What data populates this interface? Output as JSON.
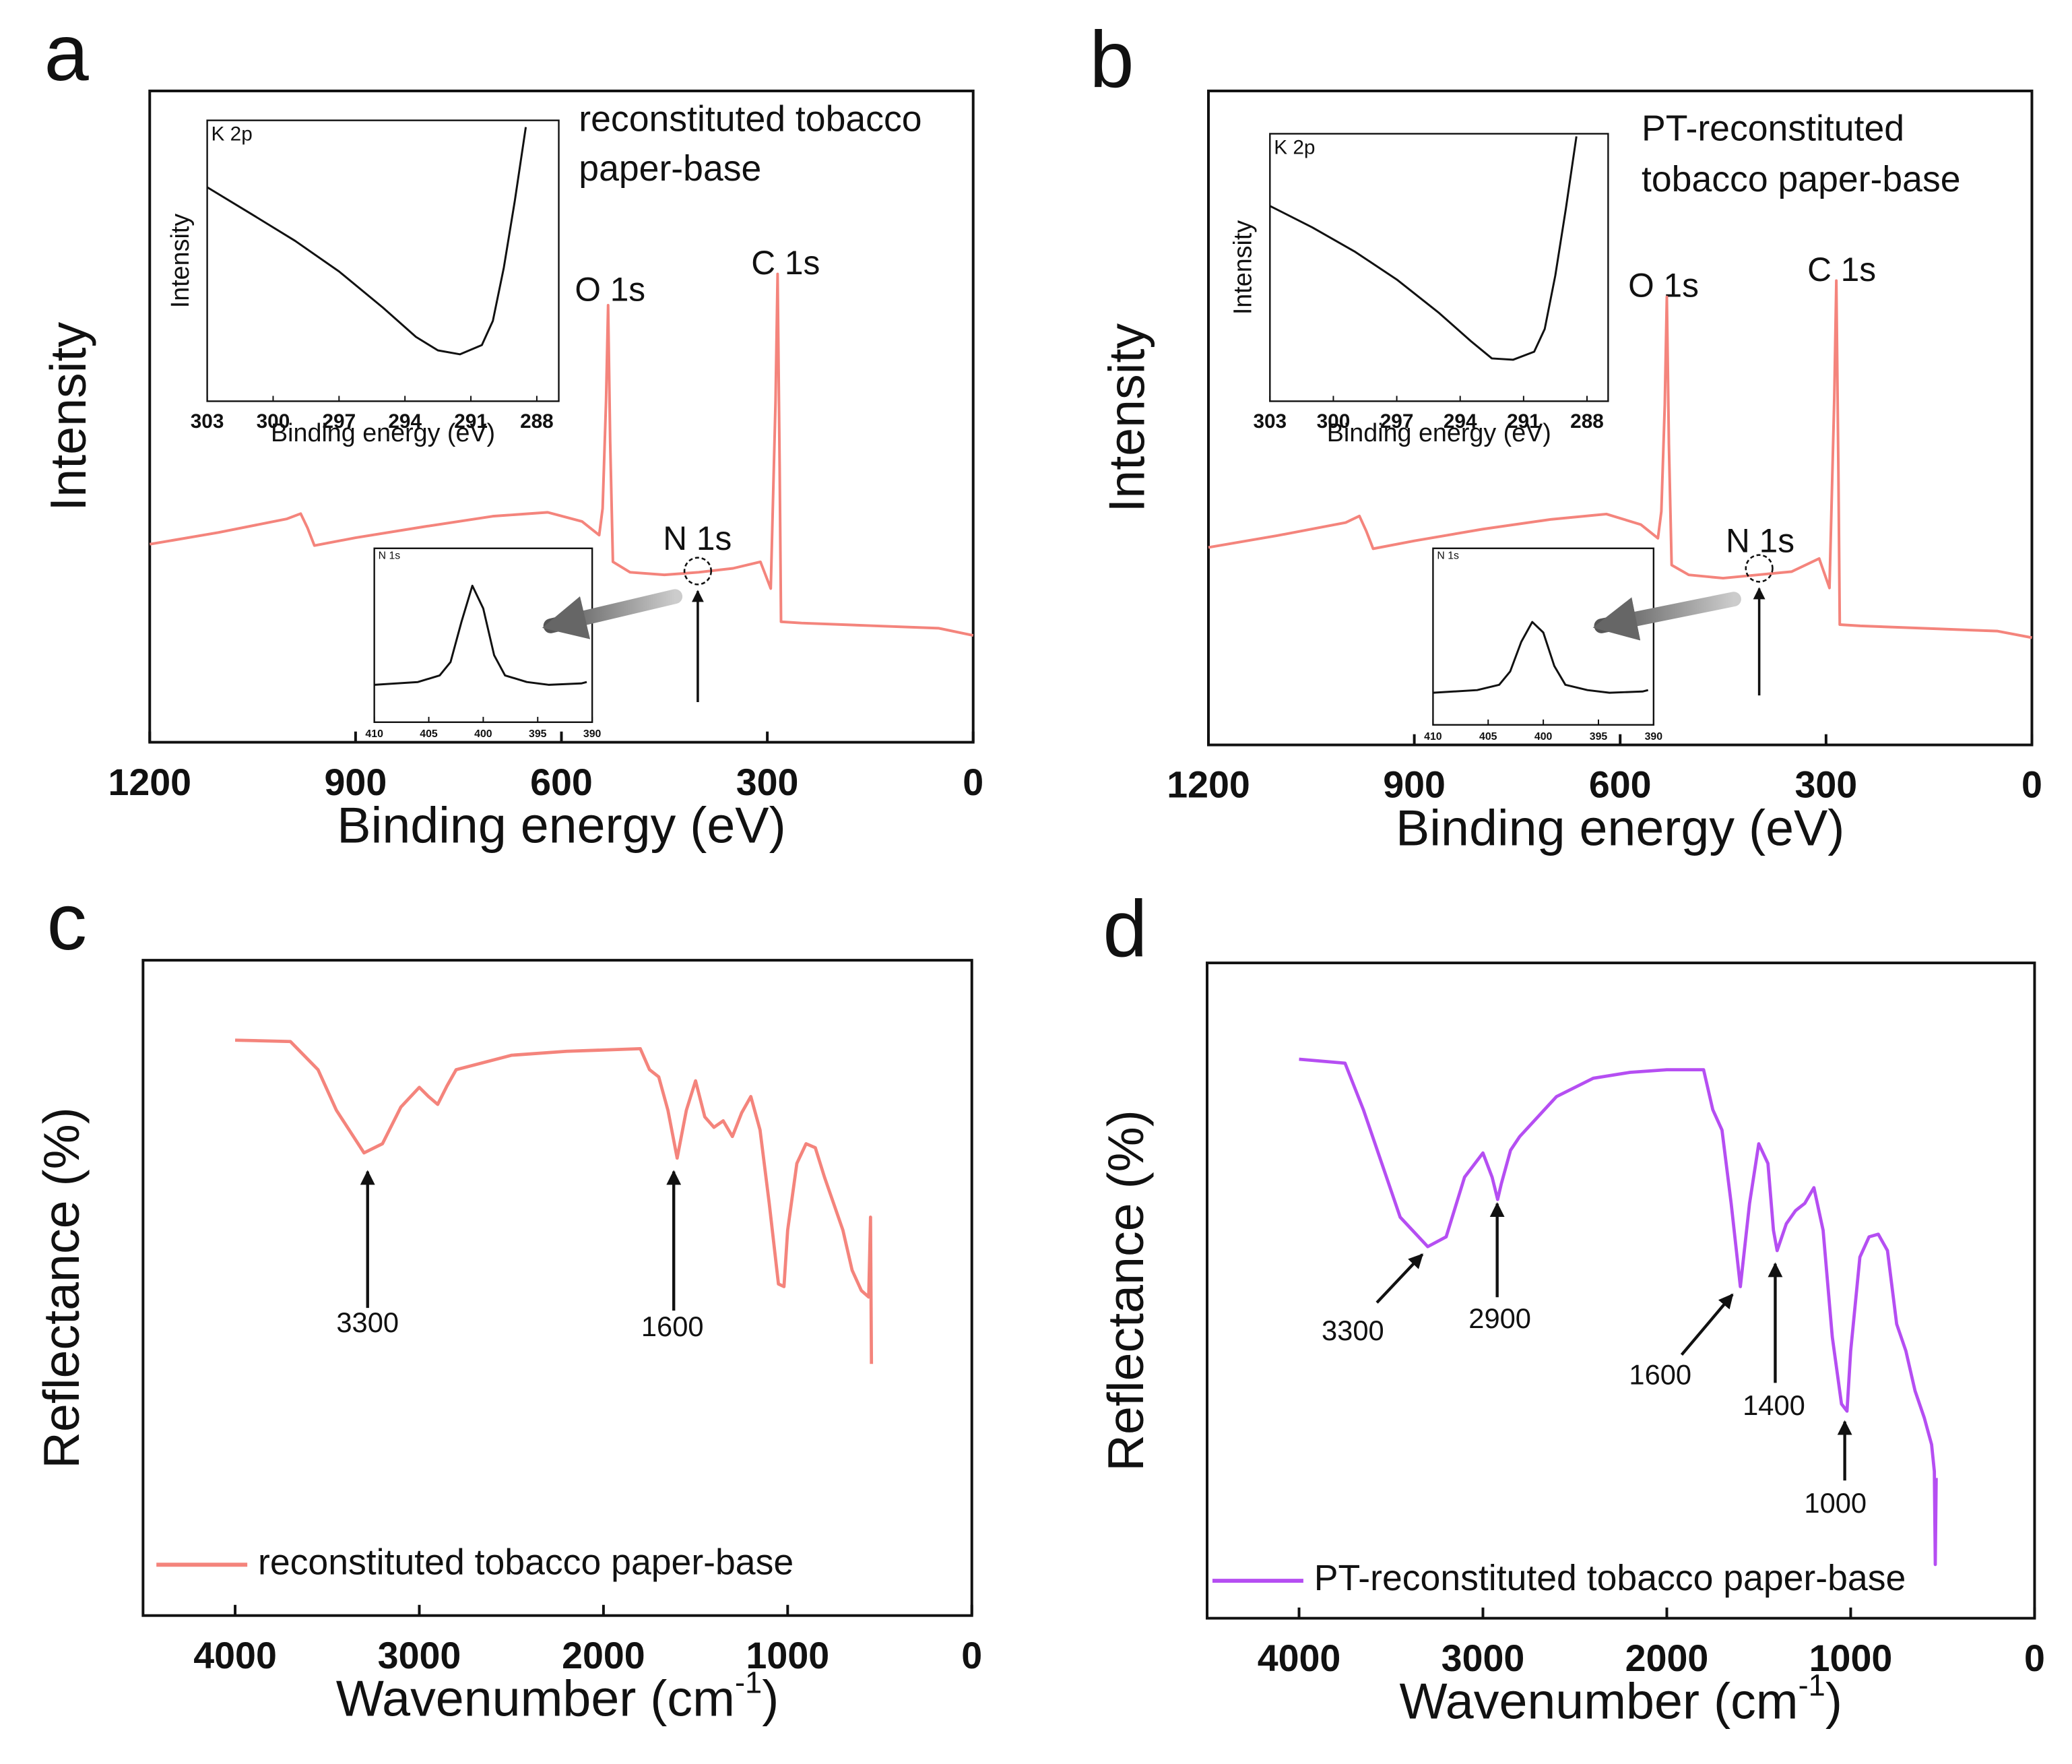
{
  "chart_data": [
    {
      "type": "line",
      "panel_label": "a",
      "xlabel": "Binding energy (eV)",
      "ylabel": "Intensity",
      "note": [
        "reconstituted tobacco",
        "paper-base"
      ],
      "annotations": [
        "O 1s",
        "C 1s",
        "N 1s"
      ],
      "xlim": [
        1200,
        0
      ],
      "xticks": [
        1200,
        900,
        600,
        300,
        0
      ],
      "ylim": [
        0,
        100
      ],
      "color": "#f4847c",
      "x": [
        1200,
        1100,
        1000,
        980,
        970,
        960,
        900,
        800,
        700,
        620,
        570,
        545,
        540,
        535,
        532,
        529,
        525,
        500,
        450,
        400,
        350,
        310,
        295,
        288,
        285,
        282,
        280,
        250,
        150,
        50,
        0
      ],
      "values": [
        30.4,
        32.2,
        34.3,
        35.1,
        32.9,
        30.2,
        31.4,
        33.1,
        34.7,
        35.3,
        33.9,
        31.8,
        35.9,
        52.4,
        67.1,
        46.2,
        27.7,
        26.1,
        25.7,
        26.1,
        26.7,
        27.7,
        23.6,
        52.4,
        71.9,
        42.1,
        18.5,
        18.3,
        17.9,
        17.5,
        16.4
      ]
    },
    {
      "type": "line",
      "title": "K 2p",
      "xlabel": "Binding energy (eV)",
      "ylabel": "Intensity",
      "xlim": [
        303,
        287
      ],
      "xticks": [
        303,
        300,
        297,
        294,
        291,
        288
      ],
      "ylim": [
        0,
        100
      ],
      "color": "#111111",
      "x": [
        303,
        301,
        299,
        297,
        295,
        293.5,
        292.5,
        291.5,
        290.5,
        290,
        289.5,
        289,
        288.5
      ],
      "values": [
        76.2,
        66.7,
        57.1,
        46.2,
        33.3,
        22.9,
        18.1,
        16.7,
        20,
        28.6,
        47.6,
        71.4,
        97.6
      ]
    },
    {
      "type": "line",
      "title": "N 1s",
      "xlim": [
        410,
        390
      ],
      "xticks": [
        410,
        405,
        400,
        395,
        390
      ],
      "ylim": [
        0,
        100
      ],
      "color": "#111111",
      "x": [
        410,
        406,
        404,
        403,
        402,
        401,
        400,
        399,
        398,
        396,
        394,
        391,
        390.5
      ],
      "values": [
        21.5,
        23.1,
        26.9,
        34.6,
        57.7,
        78.5,
        65.4,
        38.5,
        26.9,
        23.1,
        21.5,
        22.3,
        23.1
      ]
    },
    {
      "type": "line",
      "panel_label": "b",
      "xlabel": "Binding energy (eV)",
      "ylabel": "Intensity",
      "note": [
        "PT-reconstituted",
        "tobacco paper-base"
      ],
      "annotations": [
        "O 1s",
        "C 1s",
        "N 1s"
      ],
      "xlim": [
        1200,
        0
      ],
      "xticks": [
        1200,
        900,
        600,
        300,
        0
      ],
      "ylim": [
        0,
        100
      ],
      "color": "#f4847c",
      "x": [
        1200,
        1100,
        1000,
        980,
        970,
        960,
        900,
        800,
        700,
        620,
        570,
        545,
        540,
        535,
        532,
        529,
        525,
        500,
        450,
        400,
        350,
        310,
        295,
        288,
        285,
        282,
        280,
        250,
        150,
        50,
        0
      ],
      "values": [
        30.2,
        32.0,
        34.0,
        35.0,
        32.7,
        30.0,
        31.2,
        33.0,
        34.5,
        35.3,
        33.7,
        31.6,
        35.7,
        52.0,
        68.5,
        46.0,
        27.5,
        26.0,
        25.5,
        26.0,
        26.5,
        28.5,
        24.0,
        53.0,
        71.0,
        42.0,
        18.4,
        18.2,
        17.8,
        17.4,
        16.4
      ]
    },
    {
      "type": "line",
      "title": "K 2p",
      "xlabel": "Binding energy (eV)",
      "ylabel": "Intensity",
      "xlim": [
        303,
        287
      ],
      "xticks": [
        303,
        300,
        297,
        294,
        291,
        288
      ],
      "ylim": [
        0,
        100
      ],
      "color": "#111111",
      "x": [
        303,
        301,
        299,
        297,
        295,
        293.5,
        292.5,
        291.5,
        290.5,
        290,
        289.5,
        289,
        288.5
      ],
      "values": [
        73.0,
        65.0,
        56.0,
        45.5,
        33.0,
        22.5,
        16.0,
        15.5,
        18.5,
        27.0,
        47.0,
        72.0,
        99.0
      ]
    },
    {
      "type": "line",
      "title": "N 1s",
      "xlim": [
        410,
        390
      ],
      "xticks": [
        410,
        405,
        400,
        395,
        390
      ],
      "ylim": [
        0,
        100
      ],
      "color": "#111111",
      "x": [
        410,
        406,
        404,
        403,
        402,
        401,
        400,
        399,
        398,
        396,
        394,
        391,
        390.5
      ],
      "values": [
        18.2,
        19.7,
        22.7,
        30.3,
        47,
        58.3,
        52.3,
        33.3,
        22.7,
        19.7,
        18.2,
        18.9,
        19.7
      ]
    },
    {
      "type": "line",
      "panel_label": "c",
      "xlabel": [
        "Wavenumber (cm",
        "-1",
        ")"
      ],
      "ylabel": "Reflectance (%)",
      "annotations": [
        "3300",
        "1600"
      ],
      "legend": "lower left",
      "xlim": [
        4500,
        0
      ],
      "xticks": [
        4000,
        3000,
        2000,
        1000,
        0
      ],
      "ylim": [
        0,
        100
      ],
      "x": [
        4000,
        3700,
        3550,
        3450,
        3300,
        3200,
        3100,
        3000,
        2950,
        2900,
        2850,
        2800,
        2500,
        2200,
        1800,
        1750,
        1700,
        1650,
        1600,
        1550,
        1500,
        1450,
        1400,
        1350,
        1300,
        1250,
        1200,
        1150,
        1100,
        1050,
        1020,
        1000,
        950,
        900,
        850,
        800,
        700,
        650,
        600,
        560,
        550,
        545
      ],
      "series": [
        {
          "name": "reconstituted tobacco paper-base",
          "color": "#f4847c",
          "values": [
            87.8,
            87.6,
            83.3,
            77.1,
            70.6,
            72.0,
            77.6,
            80.6,
            79.2,
            78.0,
            80.8,
            83.3,
            85.5,
            86.1,
            86.5,
            83.3,
            82.2,
            77.1,
            69.8,
            77.1,
            81.6,
            76.1,
            74.5,
            75.5,
            73.1,
            76.7,
            79.2,
            74.1,
            62.9,
            50.6,
            50.2,
            58.8,
            69.0,
            72.0,
            71.4,
            66.9,
            58.8,
            52.7,
            49.6,
            48.6,
            60.8,
            38.4
          ]
        }
      ]
    },
    {
      "type": "line",
      "panel_label": "d",
      "xlabel": [
        "Wavenumber (cm",
        "-1",
        ")"
      ],
      "ylabel": "Reflectance (%)",
      "annotations": [
        "3300",
        "2900",
        "1600",
        "1400",
        "1000"
      ],
      "legend": "lower left",
      "xlim": [
        4500,
        0
      ],
      "xticks": [
        4000,
        3000,
        2000,
        1000,
        0
      ],
      "ylim": [
        0,
        100
      ],
      "x": [
        4000,
        3750,
        3650,
        3550,
        3450,
        3300,
        3200,
        3100,
        3000,
        2950,
        2920,
        2900,
        2850,
        2800,
        2600,
        2400,
        2200,
        2000,
        1800,
        1750,
        1700,
        1650,
        1600,
        1550,
        1500,
        1450,
        1420,
        1400,
        1350,
        1300,
        1250,
        1200,
        1150,
        1100,
        1050,
        1020,
        1000,
        950,
        900,
        850,
        800,
        750,
        700,
        650,
        600,
        560,
        545,
        540,
        535
      ],
      "series": [
        {
          "name": "PT-reconstituted tobacco paper-base",
          "color": "#b54ef2",
          "values": [
            85.3,
            84.7,
            77.6,
            69.4,
            61.2,
            56.7,
            58.2,
            67.3,
            71.0,
            67.3,
            63.9,
            66.3,
            71.4,
            73.5,
            79.6,
            82.4,
            83.3,
            83.7,
            83.7,
            77.6,
            74.5,
            63.3,
            50.6,
            63.3,
            72.4,
            69.4,
            59.2,
            56.1,
            60.2,
            62.2,
            63.3,
            65.7,
            59.2,
            42.9,
            32.7,
            31.6,
            40.8,
            55.1,
            58.2,
            58.6,
            56.1,
            44.9,
            40.8,
            34.7,
            30.6,
            26.5,
            22.4,
            8.2,
            21.4
          ]
        }
      ]
    }
  ]
}
